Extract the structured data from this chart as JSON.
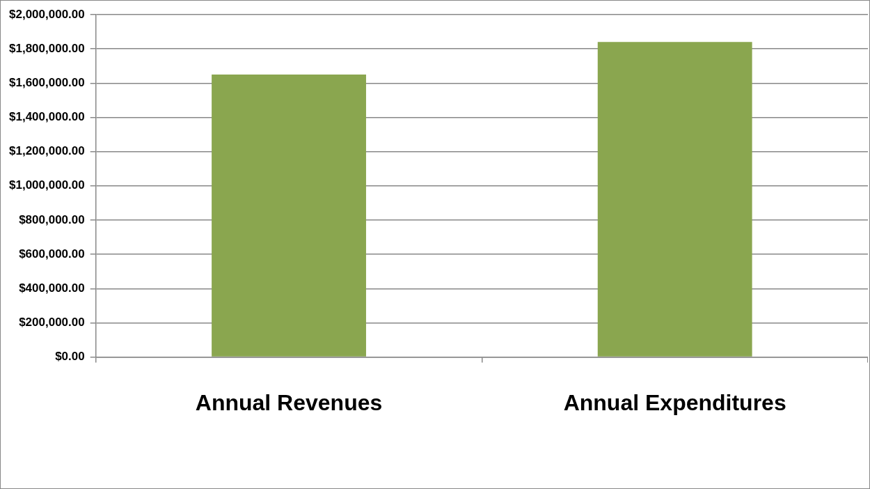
{
  "chart_data": {
    "type": "bar",
    "categories": [
      "Annual Revenues",
      "Annual Expenditures"
    ],
    "values": [
      1650000,
      1840000
    ],
    "color": "#8aa64f",
    "ylim": [
      0,
      2000000
    ],
    "yticks": [
      {
        "value": 0,
        "label": "$0.00"
      },
      {
        "value": 200000,
        "label": "$200,000.00"
      },
      {
        "value": 400000,
        "label": "$400,000.00"
      },
      {
        "value": 600000,
        "label": "$600,000.00"
      },
      {
        "value": 800000,
        "label": "$800,000.00"
      },
      {
        "value": 1000000,
        "label": "$1,000,000.00"
      },
      {
        "value": 1200000,
        "label": "$1,200,000.00"
      },
      {
        "value": 1400000,
        "label": "$1,400,000.00"
      },
      {
        "value": 1600000,
        "label": "$1,600,000.00"
      },
      {
        "value": 1800000,
        "label": "$1,800,000.00"
      },
      {
        "value": 2000000,
        "label": "$2,000,000.00"
      }
    ],
    "grid": "y",
    "legend": false
  }
}
